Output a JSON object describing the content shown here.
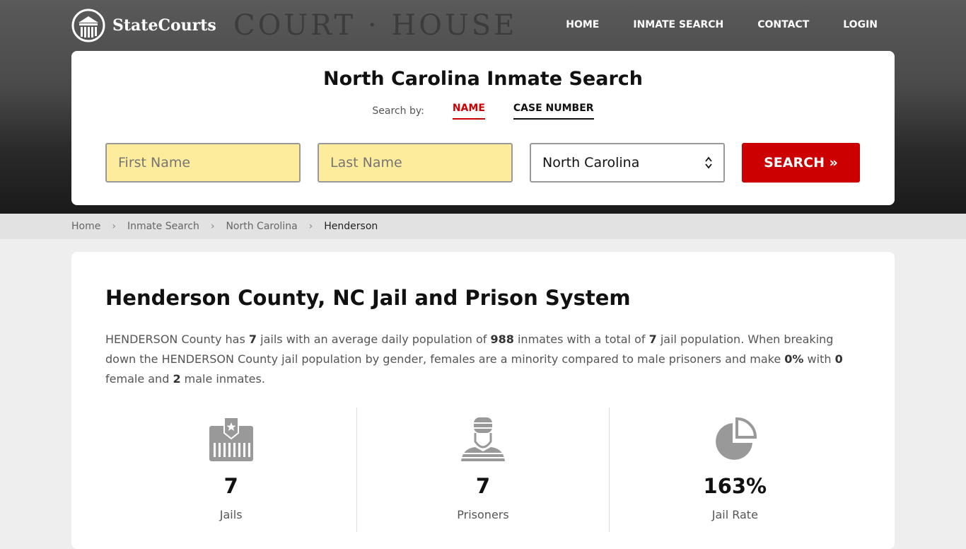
{
  "brand": {
    "name": "StateCourts"
  },
  "hero": {
    "bg_text": "COURT · HOUSE"
  },
  "nav": [
    {
      "label": "HOME"
    },
    {
      "label": "INMATE SEARCH"
    },
    {
      "label": "CONTACT"
    },
    {
      "label": "LOGIN"
    }
  ],
  "search": {
    "title": "North Carolina Inmate Search",
    "search_by": "Search by:",
    "tabs": [
      {
        "label": "NAME",
        "active": true
      },
      {
        "label": "CASE NUMBER",
        "active": false
      }
    ],
    "first_name_placeholder": "First Name",
    "last_name_placeholder": "Last Name",
    "state_value": "North Carolina",
    "button": "SEARCH »"
  },
  "breadcrumb": [
    "Home",
    "Inmate Search",
    "North Carolina",
    "Henderson"
  ],
  "main": {
    "title": "Henderson County, NC Jail and Prison System",
    "p": {
      "t1": "HENDERSON County has ",
      "jails": "7",
      "t2": " jails with an average daily population of ",
      "avg": "988",
      "t3": " inmates with a total of ",
      "total": "7",
      "t4": " jail population. When breaking down the HENDERSON County jail population by gender, females are a minority compared to male prisoners and make ",
      "pct": "0%",
      "t5": " with ",
      "female": "0",
      "t6": " female and ",
      "male": "2",
      "t7": " male inmates."
    },
    "stats": [
      {
        "icon": "jail-icon",
        "value": "7",
        "label": "Jails"
      },
      {
        "icon": "prisoner-icon",
        "value": "7",
        "label": "Prisoners"
      },
      {
        "icon": "pie-chart-icon",
        "value": "163%",
        "label": "Jail Rate"
      }
    ]
  },
  "colors": {
    "accent": "#cc0000",
    "input_bg": "#feec9d"
  }
}
